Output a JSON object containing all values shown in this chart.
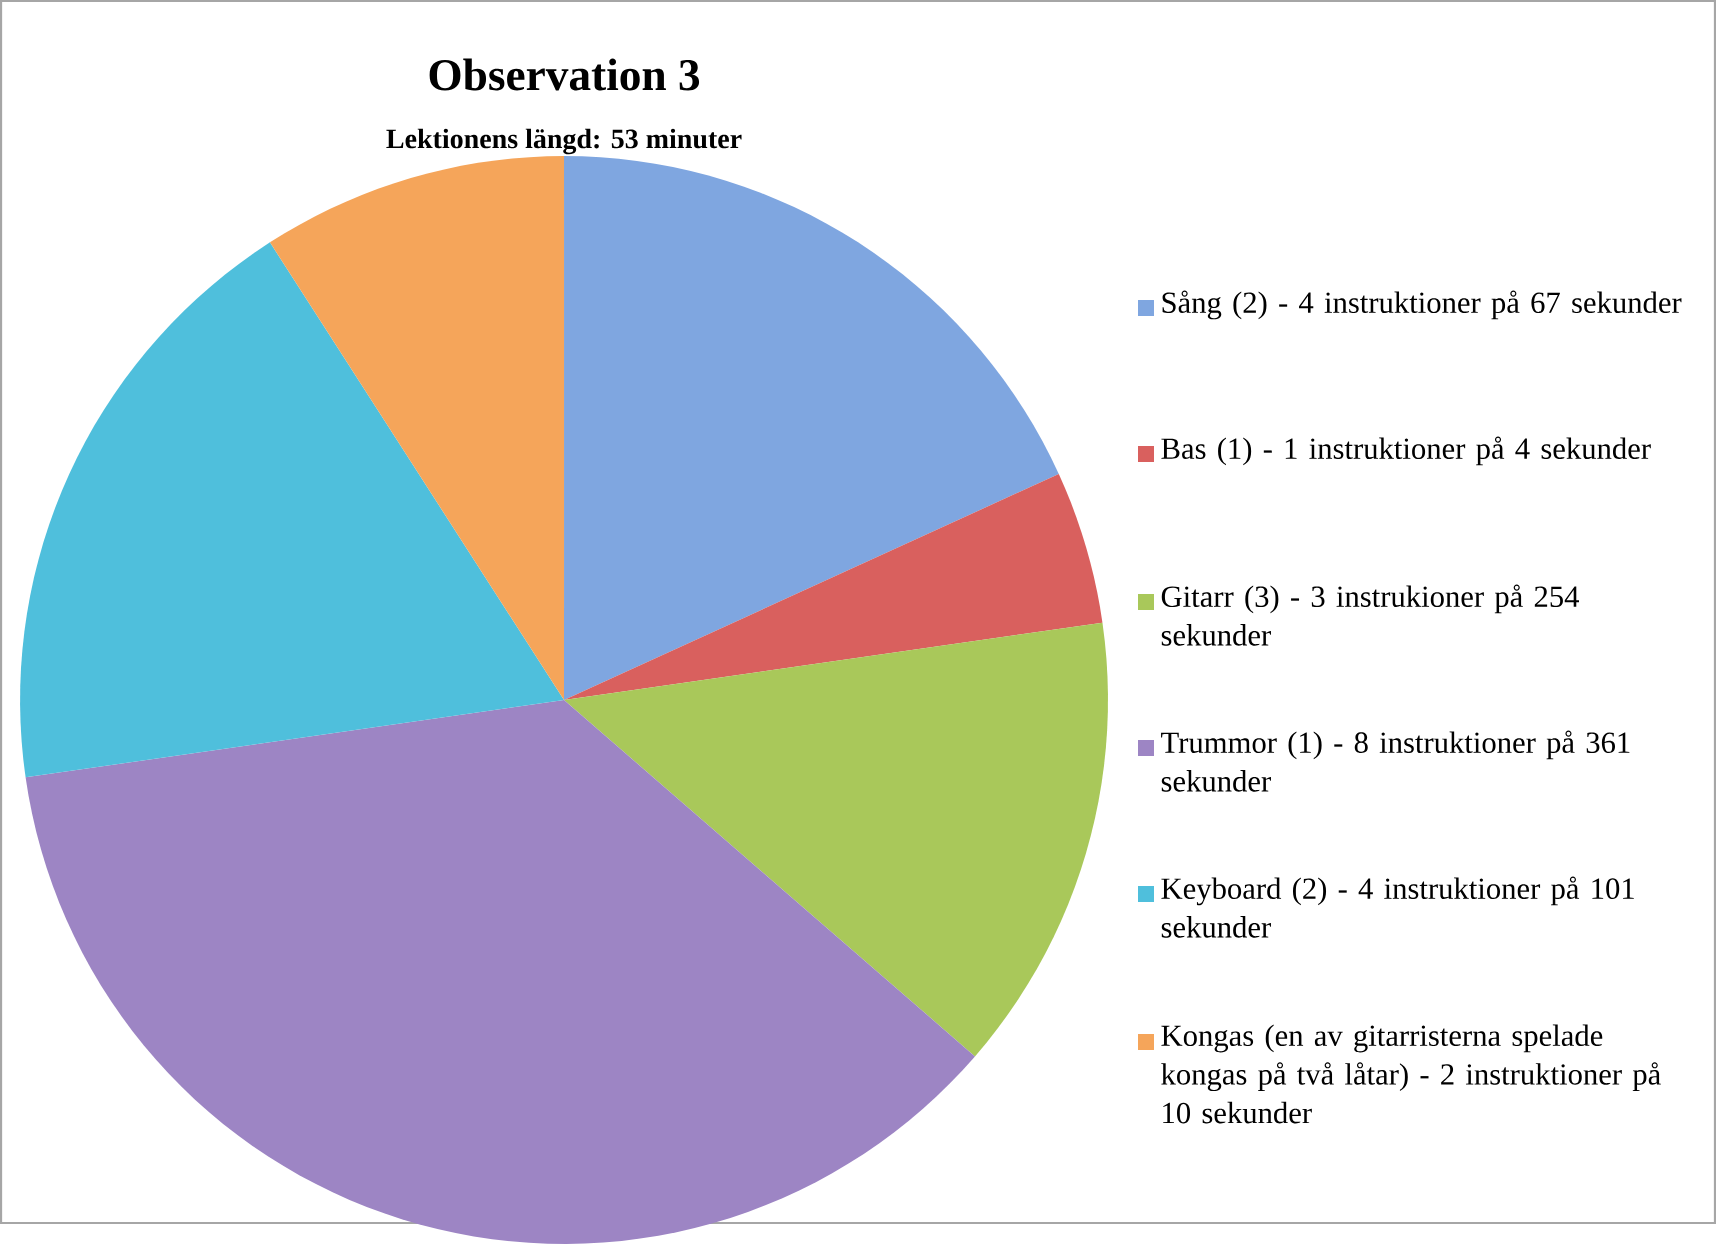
{
  "chart_data": {
    "type": "pie",
    "title": "Observation 3",
    "subtitle": "Lektionens längd: 53 minuter",
    "categories": [
      "Sång (2) - 4 instruktioner på 67 sekunder",
      "Bas (1) - 1 instruktioner på 4 sekunder",
      "Gitarr (3) - 3 instrukioner på 254 sekunder",
      "Trummor (1) - 8 instruktioner på 361 sekunder",
      "Keyboard (2) - 4 instruktioner på 101 sekunder",
      "Kongas (en av gitarristerna spelade kongas på två låtar) - 2 instruktioner på 10 sekunder"
    ],
    "values": [
      18.18,
      4.55,
      13.64,
      36.36,
      18.18,
      9.09
    ],
    "colors": [
      "#7fa6e0",
      "#d9605e",
      "#a9c85a",
      "#9d85c4",
      "#4fbfdc",
      "#f5a55a"
    ],
    "legend": "right"
  }
}
